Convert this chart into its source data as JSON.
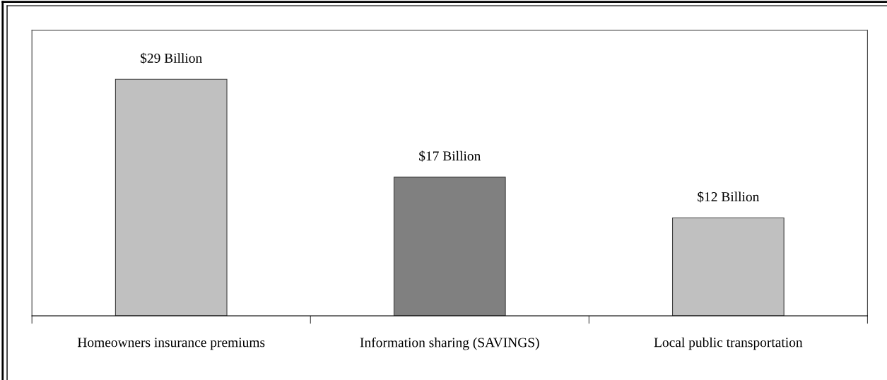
{
  "chart_data": {
    "type": "bar",
    "categories": [
      "Homeowners insurance premiums",
      "Information sharing (SAVINGS)",
      "Local public transportation"
    ],
    "values": [
      29,
      17,
      12
    ],
    "colors": [
      "#c0c0c0",
      "#808080",
      "#c0c0c0"
    ],
    "value_labels": [
      "$29 Billion",
      "$17 Billion",
      "$12 Billion"
    ],
    "ylim": [
      0,
      35
    ],
    "tick_labels": "x",
    "grid": false,
    "legend": false
  }
}
